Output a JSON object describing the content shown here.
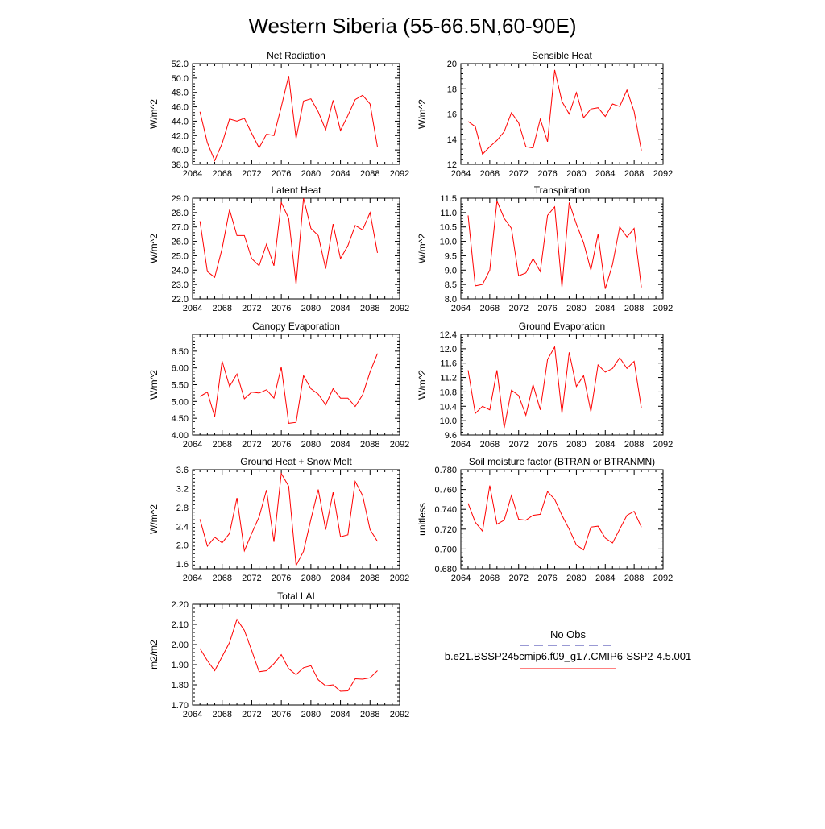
{
  "title": "Western Siberia (55-66.5N,60-90E)",
  "colors": {
    "model": "#ff0000",
    "obs": "#3333aa",
    "axis": "#000000"
  },
  "legend": {
    "obs_label": "No Obs",
    "model_label": "b.e21.BSSP245cmip6.f09_g17.CMIP6-SSP2-4.5.001"
  },
  "chart_data": [
    {
      "type": "line",
      "title": "Net Radiation",
      "xlabel": "",
      "ylabel": "W/m^2",
      "xlim": [
        2064,
        2092
      ],
      "ylim": [
        38.0,
        52.0
      ],
      "yticks": [
        38.0,
        40.0,
        42.0,
        44.0,
        46.0,
        48.0,
        50.0,
        52.0
      ],
      "ydec": 1,
      "xticks": [
        2064,
        2068,
        2072,
        2076,
        2080,
        2084,
        2088,
        2092
      ],
      "series": [
        {
          "x": [
            2065,
            2066,
            2067,
            2068,
            2069,
            2070,
            2071,
            2072,
            2073,
            2074,
            2075,
            2076,
            2077,
            2078,
            2079,
            2080,
            2081,
            2082,
            2083,
            2084,
            2085,
            2086,
            2087,
            2088,
            2089
          ],
          "values": [
            45.3,
            41.0,
            38.5,
            40.9,
            44.3,
            44.0,
            44.4,
            42.3,
            40.3,
            42.2,
            42.0,
            46.0,
            50.3,
            41.6,
            46.8,
            47.1,
            45.3,
            42.8,
            46.9,
            42.7,
            44.8,
            47.0,
            47.6,
            46.4,
            40.4
          ]
        }
      ]
    },
    {
      "type": "line",
      "title": "Sensible Heat",
      "xlabel": "",
      "ylabel": "W/m^2",
      "xlim": [
        2064,
        2092
      ],
      "ylim": [
        12,
        20
      ],
      "yticks": [
        12,
        14,
        16,
        18,
        20
      ],
      "ydec": 0,
      "xticks": [
        2064,
        2068,
        2072,
        2076,
        2080,
        2084,
        2088,
        2092
      ],
      "series": [
        {
          "x": [
            2065,
            2066,
            2067,
            2068,
            2069,
            2070,
            2071,
            2072,
            2073,
            2074,
            2075,
            2076,
            2077,
            2078,
            2079,
            2080,
            2081,
            2082,
            2083,
            2084,
            2085,
            2086,
            2087,
            2088,
            2089
          ],
          "values": [
            15.4,
            15.0,
            12.8,
            13.4,
            13.9,
            14.6,
            16.1,
            15.3,
            13.4,
            13.3,
            15.6,
            13.8,
            19.5,
            17.0,
            16.0,
            17.7,
            15.7,
            16.4,
            16.5,
            15.8,
            16.8,
            16.6,
            17.9,
            16.2,
            13.1
          ]
        }
      ]
    },
    {
      "type": "line",
      "title": "Latent Heat",
      "xlabel": "",
      "ylabel": "W/m^2",
      "xlim": [
        2064,
        2092
      ],
      "ylim": [
        22.0,
        29.0
      ],
      "yticks": [
        22.0,
        23.0,
        24.0,
        25.0,
        26.0,
        27.0,
        28.0,
        29.0
      ],
      "ydec": 1,
      "xticks": [
        2064,
        2068,
        2072,
        2076,
        2080,
        2084,
        2088,
        2092
      ],
      "series": [
        {
          "x": [
            2065,
            2066,
            2067,
            2068,
            2069,
            2070,
            2071,
            2072,
            2073,
            2074,
            2075,
            2076,
            2077,
            2078,
            2079,
            2080,
            2081,
            2082,
            2083,
            2084,
            2085,
            2086,
            2087,
            2088,
            2089
          ],
          "values": [
            27.4,
            23.9,
            23.5,
            25.5,
            28.2,
            26.4,
            26.4,
            24.8,
            24.3,
            25.8,
            24.3,
            28.7,
            27.6,
            23.0,
            29.0,
            26.9,
            26.4,
            24.1,
            27.2,
            24.8,
            25.7,
            27.1,
            26.8,
            28.0,
            25.2
          ]
        }
      ]
    },
    {
      "type": "line",
      "title": "Transpiration",
      "xlabel": "",
      "ylabel": "W/m^2",
      "xlim": [
        2064,
        2092
      ],
      "ylim": [
        8.0,
        11.5
      ],
      "yticks": [
        8.0,
        8.5,
        9.0,
        9.5,
        10.0,
        10.5,
        11.0,
        11.5
      ],
      "ydec": 1,
      "xticks": [
        2064,
        2068,
        2072,
        2076,
        2080,
        2084,
        2088,
        2092
      ],
      "series": [
        {
          "x": [
            2065,
            2066,
            2067,
            2068,
            2069,
            2070,
            2071,
            2072,
            2073,
            2074,
            2075,
            2076,
            2077,
            2078,
            2079,
            2080,
            2081,
            2082,
            2083,
            2084,
            2085,
            2086,
            2087,
            2088,
            2089
          ],
          "values": [
            10.9,
            8.45,
            8.5,
            9.0,
            11.4,
            10.8,
            10.45,
            8.8,
            8.9,
            9.4,
            8.95,
            10.9,
            11.2,
            8.4,
            11.35,
            10.6,
            9.95,
            9.0,
            10.25,
            8.35,
            9.2,
            10.5,
            10.15,
            10.45,
            8.4
          ]
        }
      ]
    },
    {
      "type": "line",
      "title": "Canopy Evaporation",
      "xlabel": "",
      "ylabel": "W/m^2",
      "xlim": [
        2064,
        2092
      ],
      "ylim": [
        4.0,
        7.0
      ],
      "yticks": [
        4.0,
        4.5,
        5.0,
        5.5,
        6.0,
        6.5
      ],
      "ydec": 2,
      "xticks": [
        2064,
        2068,
        2072,
        2076,
        2080,
        2084,
        2088,
        2092
      ],
      "series": [
        {
          "x": [
            2065,
            2066,
            2067,
            2068,
            2069,
            2070,
            2071,
            2072,
            2073,
            2074,
            2075,
            2076,
            2077,
            2078,
            2079,
            2080,
            2081,
            2082,
            2083,
            2084,
            2085,
            2086,
            2087,
            2088,
            2089
          ],
          "values": [
            5.15,
            5.28,
            4.55,
            6.2,
            5.45,
            5.82,
            5.08,
            5.28,
            5.25,
            5.35,
            5.1,
            6.03,
            4.35,
            4.38,
            5.77,
            5.38,
            5.22,
            4.9,
            5.38,
            5.1,
            5.1,
            4.85,
            5.2,
            5.88,
            6.43
          ]
        }
      ]
    },
    {
      "type": "line",
      "title": "Ground Evaporation",
      "xlabel": "",
      "ylabel": "W/m^2",
      "xlim": [
        2064,
        2092
      ],
      "ylim": [
        9.6,
        12.4
      ],
      "yticks": [
        9.6,
        10.0,
        10.4,
        10.8,
        11.2,
        11.6,
        12.0,
        12.4
      ],
      "ydec": 1,
      "xticks": [
        2064,
        2068,
        2072,
        2076,
        2080,
        2084,
        2088,
        2092
      ],
      "series": [
        {
          "x": [
            2065,
            2066,
            2067,
            2068,
            2069,
            2070,
            2071,
            2072,
            2073,
            2074,
            2075,
            2076,
            2077,
            2078,
            2079,
            2080,
            2081,
            2082,
            2083,
            2084,
            2085,
            2086,
            2087,
            2088,
            2089
          ],
          "values": [
            11.4,
            10.2,
            10.4,
            10.3,
            11.4,
            9.8,
            10.85,
            10.7,
            10.15,
            11.0,
            10.3,
            11.7,
            12.05,
            10.2,
            11.9,
            10.95,
            11.25,
            10.25,
            11.55,
            11.35,
            11.45,
            11.75,
            11.45,
            11.65,
            10.35
          ]
        }
      ]
    },
    {
      "type": "line",
      "title": "Ground Heat + Snow Melt",
      "xlabel": "",
      "ylabel": "W/m^2",
      "xlim": [
        2064,
        2092
      ],
      "ylim": [
        1.5,
        3.6
      ],
      "yticks": [
        1.6,
        2.0,
        2.4,
        2.8,
        3.2,
        3.6
      ],
      "ydec": 1,
      "xticks": [
        2064,
        2068,
        2072,
        2076,
        2080,
        2084,
        2088,
        2092
      ],
      "series": [
        {
          "x": [
            2065,
            2066,
            2067,
            2068,
            2069,
            2070,
            2071,
            2072,
            2073,
            2074,
            2075,
            2076,
            2077,
            2078,
            2079,
            2080,
            2081,
            2082,
            2083,
            2084,
            2085,
            2086,
            2087,
            2088,
            2089
          ],
          "values": [
            2.55,
            1.98,
            2.17,
            2.05,
            2.25,
            3.0,
            1.88,
            2.25,
            2.6,
            3.17,
            2.07,
            3.52,
            3.25,
            1.57,
            1.87,
            2.55,
            3.18,
            2.33,
            3.12,
            2.18,
            2.22,
            3.35,
            3.05,
            2.33,
            2.08
          ]
        }
      ]
    },
    {
      "type": "line",
      "title": "Soil moisture factor (BTRAN or BTRANMN)",
      "xlabel": "",
      "ylabel": "unitless",
      "xlim": [
        2064,
        2092
      ],
      "ylim": [
        0.68,
        0.78
      ],
      "yticks": [
        0.68,
        0.7,
        0.72,
        0.74,
        0.76,
        0.78
      ],
      "ydec": 3,
      "xticks": [
        2064,
        2068,
        2072,
        2076,
        2080,
        2084,
        2088,
        2092
      ],
      "series": [
        {
          "x": [
            2065,
            2066,
            2067,
            2068,
            2069,
            2070,
            2071,
            2072,
            2073,
            2074,
            2075,
            2076,
            2077,
            2078,
            2079,
            2080,
            2081,
            2082,
            2083,
            2084,
            2085,
            2086,
            2087,
            2088,
            2089
          ],
          "values": [
            0.746,
            0.727,
            0.718,
            0.764,
            0.725,
            0.729,
            0.754,
            0.73,
            0.729,
            0.734,
            0.735,
            0.758,
            0.75,
            0.734,
            0.72,
            0.704,
            0.699,
            0.722,
            0.723,
            0.711,
            0.706,
            0.72,
            0.734,
            0.738,
            0.722
          ]
        }
      ]
    },
    {
      "type": "line",
      "title": "Total LAI",
      "xlabel": "",
      "ylabel": "m2/m2",
      "xlim": [
        2064,
        2092
      ],
      "ylim": [
        1.7,
        2.2
      ],
      "yticks": [
        1.7,
        1.8,
        1.9,
        2.0,
        2.1,
        2.2
      ],
      "ydec": 2,
      "xticks": [
        2064,
        2068,
        2072,
        2076,
        2080,
        2084,
        2088,
        2092
      ],
      "series": [
        {
          "x": [
            2065,
            2066,
            2067,
            2068,
            2069,
            2070,
            2071,
            2072,
            2073,
            2074,
            2075,
            2076,
            2077,
            2078,
            2079,
            2080,
            2081,
            2082,
            2083,
            2084,
            2085,
            2086,
            2087,
            2088,
            2089
          ],
          "values": [
            1.98,
            1.92,
            1.87,
            1.94,
            2.01,
            2.125,
            2.07,
            1.97,
            1.865,
            1.87,
            1.905,
            1.95,
            1.88,
            1.85,
            1.885,
            1.895,
            1.825,
            1.795,
            1.8,
            1.768,
            1.77,
            1.83,
            1.828,
            1.835,
            1.87
          ]
        }
      ]
    }
  ]
}
